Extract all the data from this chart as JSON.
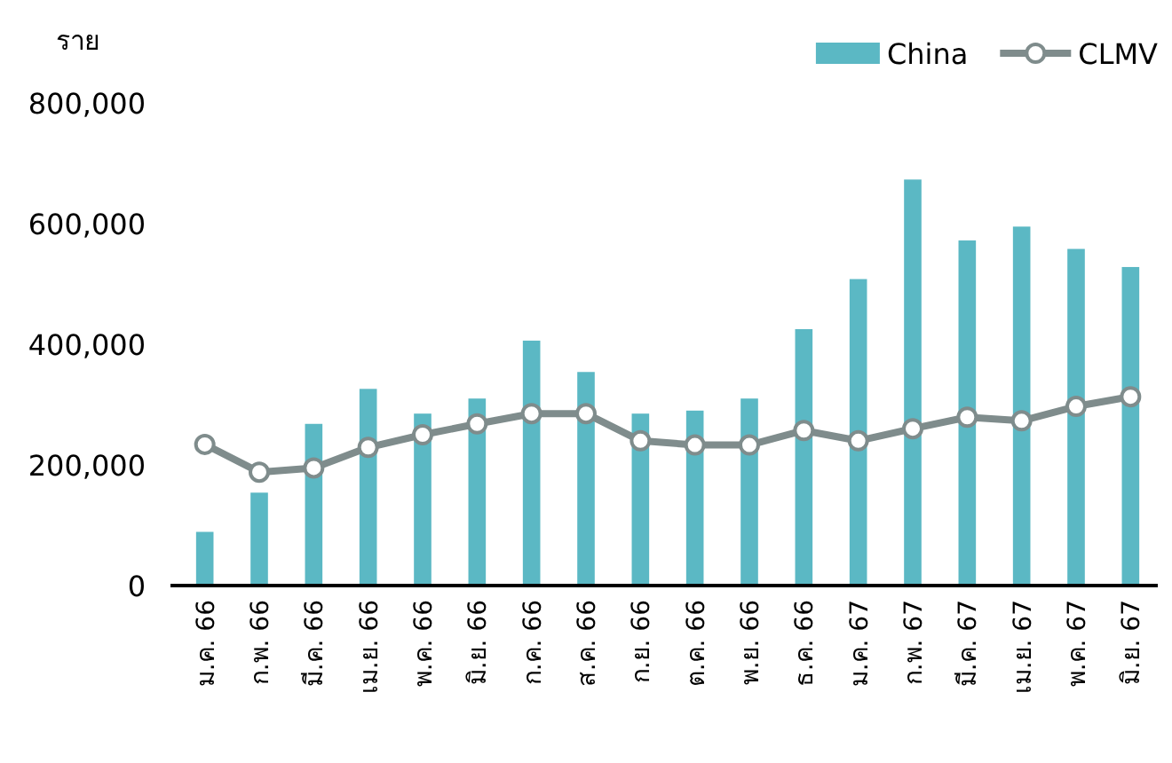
{
  "chart_data": {
    "type": "bar",
    "ylabel": "ราย",
    "categories": [
      "ม.ค. 66",
      "ก.พ. 66",
      "มี.ค. 66",
      "เม.ย. 66",
      "พ.ค. 66",
      "มิ.ย. 66",
      "ก.ค. 66",
      "ส.ค. 66",
      "ก.ย. 66",
      "ต.ค. 66",
      "พ.ย. 66",
      "ธ.ค. 66",
      "ม.ค. 67",
      "ก.พ. 67",
      "มี.ค. 67",
      "เม.ย. 67",
      "พ.ค. 67",
      "มิ.ย. 67"
    ],
    "series": [
      {
        "name": "China",
        "color": "#5bb8c4",
        "values": [
          89000,
          154000,
          268000,
          326000,
          285000,
          310000,
          406000,
          354000,
          285000,
          290000,
          310000,
          425000,
          508000,
          673000,
          572000,
          595000,
          558000,
          528000
        ]
      },
      {
        "name": "CLMV",
        "type": "line",
        "color": "#7f8c8c",
        "values": [
          234000,
          188000,
          195000,
          229000,
          250000,
          268000,
          285000,
          285000,
          240000,
          233000,
          233000,
          257000,
          240000,
          260000,
          279000,
          273000,
          297000,
          313000
        ]
      }
    ],
    "ylim": [
      0,
      800000
    ],
    "yticks": [
      {
        "value": 0,
        "label": "0"
      },
      {
        "value": 200000,
        "label": "200,000"
      },
      {
        "value": 400000,
        "label": "400,000"
      },
      {
        "value": 600000,
        "label": "600,000"
      },
      {
        "value": 800000,
        "label": "800,000"
      }
    ],
    "legend": "top right",
    "marker": "circle"
  }
}
